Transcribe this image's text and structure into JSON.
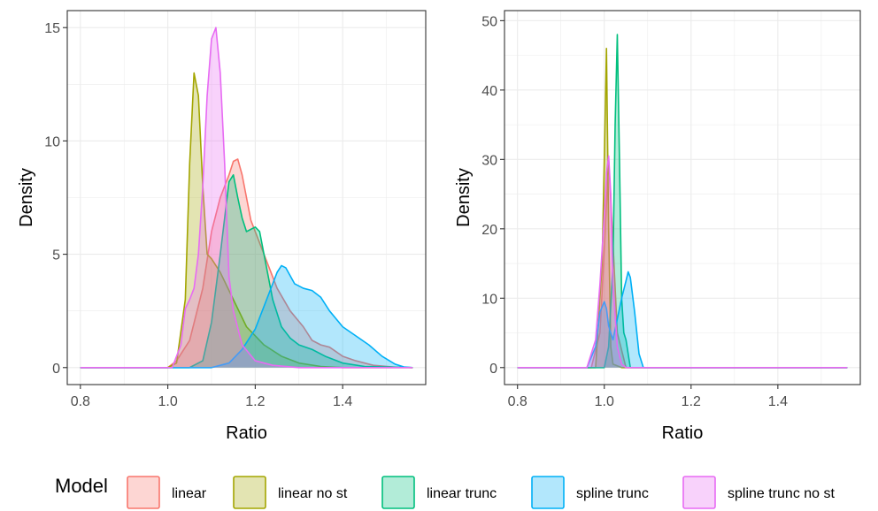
{
  "legend": {
    "title": "Model",
    "items": [
      {
        "label": "linear",
        "color": "#F8766D"
      },
      {
        "label": "linear no st",
        "color": "#A3A500"
      },
      {
        "label": "linear trunc",
        "color": "#00BF7D"
      },
      {
        "label": "spline trunc",
        "color": "#00B0F6"
      },
      {
        "label": "spline trunc no st",
        "color": "#E76BF3"
      }
    ]
  },
  "chart_data": [
    {
      "type": "area",
      "xlabel": "Ratio",
      "ylabel": "Density",
      "xlim": [
        0.77,
        1.59
      ],
      "ylim": [
        -0.75,
        15.75
      ],
      "xticks": [
        0.8,
        1.0,
        1.2,
        1.4
      ],
      "xtick_labels": [
        "0.8",
        "1.0",
        "1.2",
        "1.4"
      ],
      "yticks": [
        0,
        5,
        10,
        15
      ],
      "ytick_labels": [
        "0",
        "5",
        "10",
        "15"
      ],
      "grid": true,
      "series": [
        {
          "name": "linear",
          "x": [
            0.8,
            1.0,
            1.02,
            1.05,
            1.08,
            1.1,
            1.12,
            1.14,
            1.15,
            1.16,
            1.17,
            1.19,
            1.22,
            1.25,
            1.28,
            1.31,
            1.33,
            1.35,
            1.37,
            1.4,
            1.43,
            1.47,
            1.52,
            1.56
          ],
          "y": [
            0,
            0,
            0.3,
            1.2,
            3.5,
            6,
            7.5,
            8.5,
            9.1,
            9.2,
            8.5,
            6.5,
            5,
            3.5,
            2.5,
            1.8,
            1.2,
            1,
            0.9,
            0.5,
            0.3,
            0.1,
            0.02,
            0
          ]
        },
        {
          "name": "linear no st",
          "x": [
            0.8,
            1.0,
            1.02,
            1.04,
            1.05,
            1.06,
            1.07,
            1.08,
            1.09,
            1.1,
            1.12,
            1.15,
            1.18,
            1.22,
            1.26,
            1.3,
            1.35,
            1.4,
            1.56
          ],
          "y": [
            0,
            0,
            0.2,
            3,
            9,
            13,
            12,
            8,
            5,
            4.8,
            4.2,
            3,
            1.8,
            1,
            0.5,
            0.2,
            0.05,
            0,
            0
          ]
        },
        {
          "name": "linear trunc",
          "x": [
            0.8,
            1.05,
            1.08,
            1.1,
            1.12,
            1.14,
            1.15,
            1.16,
            1.17,
            1.18,
            1.19,
            1.2,
            1.21,
            1.22,
            1.24,
            1.26,
            1.28,
            1.3,
            1.33,
            1.36,
            1.4,
            1.45,
            1.56
          ],
          "y": [
            0,
            0,
            0.3,
            2,
            5,
            8.2,
            8.5,
            7.5,
            6.6,
            6,
            6.1,
            6.2,
            6,
            5,
            3,
            1.8,
            1.3,
            1,
            0.8,
            0.5,
            0.2,
            0.05,
            0
          ]
        },
        {
          "name": "spline trunc",
          "x": [
            0.8,
            1.1,
            1.14,
            1.17,
            1.2,
            1.23,
            1.25,
            1.26,
            1.27,
            1.29,
            1.31,
            1.33,
            1.35,
            1.37,
            1.4,
            1.43,
            1.46,
            1.49,
            1.52,
            1.54,
            1.56
          ],
          "y": [
            0,
            0,
            0.2,
            0.8,
            1.7,
            3.2,
            4.2,
            4.5,
            4.4,
            3.7,
            3.5,
            3.4,
            3.1,
            2.5,
            1.8,
            1.4,
            1,
            0.5,
            0.15,
            0.03,
            0
          ]
        },
        {
          "name": "spline trunc no st",
          "x": [
            0.8,
            1.01,
            1.03,
            1.04,
            1.05,
            1.06,
            1.07,
            1.08,
            1.09,
            1.1,
            1.11,
            1.12,
            1.13,
            1.14,
            1.15,
            1.17,
            1.2,
            1.24,
            1.3,
            1.56
          ],
          "y": [
            0,
            0,
            1,
            2.6,
            3,
            3.5,
            5,
            8,
            12,
            14.5,
            15,
            13,
            9,
            4,
            2.5,
            1,
            0.3,
            0.1,
            0,
            0
          ]
        }
      ]
    },
    {
      "type": "area",
      "xlabel": "Ratio",
      "ylabel": "Density",
      "xlim": [
        0.77,
        1.59
      ],
      "ylim": [
        -2.45,
        51.45
      ],
      "xticks": [
        0.8,
        1.0,
        1.2,
        1.4
      ],
      "xtick_labels": [
        "0.8",
        "1.0",
        "1.2",
        "1.4"
      ],
      "yticks": [
        0,
        10,
        20,
        30,
        40,
        50
      ],
      "ytick_labels": [
        "0",
        "10",
        "20",
        "30",
        "40",
        "50"
      ],
      "grid": true,
      "series": [
        {
          "name": "linear",
          "x": [
            0.8,
            0.97,
            0.99,
            1.0,
            1.01,
            1.02,
            1.03,
            1.05,
            1.56
          ],
          "y": [
            0,
            0,
            5,
            17,
            30,
            18,
            5,
            0,
            0
          ]
        },
        {
          "name": "linear no st",
          "x": [
            0.8,
            0.98,
            0.995,
            1.0,
            1.005,
            1.01,
            1.015,
            1.02,
            1.04,
            1.56
          ],
          "y": [
            0,
            0,
            15,
            30,
            46,
            20,
            3,
            0.5,
            0,
            0
          ]
        },
        {
          "name": "linear trunc",
          "x": [
            0.8,
            1.0,
            1.01,
            1.02,
            1.025,
            1.03,
            1.035,
            1.04,
            1.045,
            1.05,
            1.06,
            1.56
          ],
          "y": [
            0,
            0,
            3,
            15,
            35,
            48,
            30,
            10,
            5,
            4,
            0,
            0
          ]
        },
        {
          "name": "spline trunc",
          "x": [
            0.8,
            0.96,
            0.98,
            0.99,
            1.0,
            1.005,
            1.01,
            1.02,
            1.03,
            1.04,
            1.05,
            1.055,
            1.06,
            1.07,
            1.08,
            1.09,
            1.56
          ],
          "y": [
            0,
            0,
            3,
            8,
            9.5,
            8.5,
            6,
            4,
            7,
            10,
            12.5,
            13.8,
            13,
            8,
            2,
            0,
            0
          ]
        },
        {
          "name": "spline trunc no st",
          "x": [
            0.8,
            0.96,
            0.98,
            0.99,
            1.0,
            1.005,
            1.01,
            1.015,
            1.02,
            1.03,
            1.04,
            1.05,
            1.56
          ],
          "y": [
            0,
            0,
            4,
            12,
            22,
            28,
            30.5,
            25,
            12,
            3,
            0.5,
            0,
            0
          ]
        }
      ]
    }
  ]
}
